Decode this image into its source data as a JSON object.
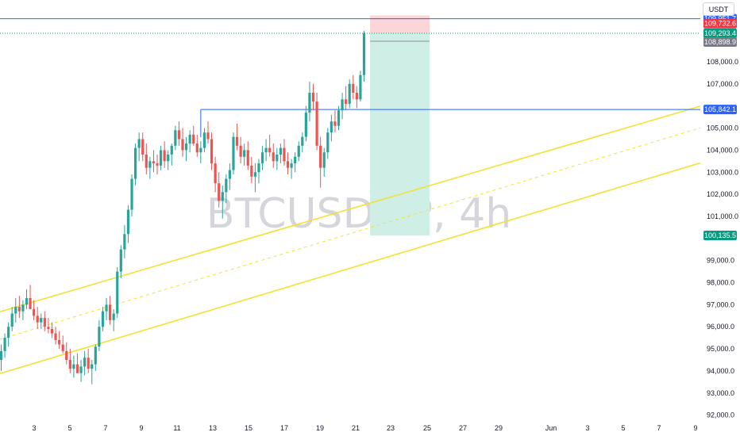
{
  "symbol_watermark": "BTCUSDT.P, 4h",
  "currency_label": "USDT",
  "colors": {
    "up": "#26a69a",
    "down": "#ef5350",
    "channel": "#f2e234",
    "level_blue": "#2962ff",
    "level_green": "#089981",
    "level_red": "#f23645",
    "level_grey": "#787b86",
    "target_zone": "#cfeee6",
    "stop_zone": "#fcd5d8"
  },
  "chart_data": {
    "type": "candlestick",
    "symbol": "BTCUSDT.P",
    "timeframe": "4h",
    "x_ticks": [
      "3",
      "5",
      "7",
      "9",
      "11",
      "13",
      "15",
      "17",
      "19",
      "21",
      "23",
      "25",
      "27",
      "29",
      "Jun",
      "3",
      "5",
      "7",
      "9"
    ],
    "y_ticks": [
      "109,000.0",
      "108,000.0",
      "107,000.0",
      "106,000.0",
      "105,000.0",
      "104,000.0",
      "103,000.0",
      "102,000.0",
      "101,000.0",
      "100,000.0",
      "99,000.0",
      "98,000.0",
      "97,000.0",
      "96,000.0",
      "95,000.0",
      "94,000.0",
      "93,000.0",
      "92,000.0"
    ],
    "ylim": [
      91700,
      110800
    ],
    "price_labels": [
      {
        "text": "109,951.7",
        "price": 109951.7,
        "color": "#2962ff"
      },
      {
        "text": "109,732.6",
        "price": 109732.6,
        "color": "#f23645"
      },
      {
        "text": "109,293.4",
        "price": 109293.4,
        "color": "#089981"
      },
      {
        "text": "108,898.9",
        "price": 108898.9,
        "color": "#787b86"
      },
      {
        "text": "105,842.1",
        "price": 105842.1,
        "color": "#2962ff"
      },
      {
        "text": "100,135.5",
        "price": 100135.5,
        "color": "#089981"
      }
    ],
    "horizontal_levels": [
      {
        "price": 109951.7,
        "style": "solid",
        "color": "#2962ff",
        "span": "full"
      },
      {
        "price": 109293.4,
        "style": "dotted",
        "color": "#089981",
        "span": "full"
      },
      {
        "price": 105842.1,
        "style": "solid",
        "color": "#2962ff",
        "span": "from_candle_70"
      }
    ],
    "position": {
      "type": "short",
      "entry": 109293.4,
      "stop": 110100,
      "target": 100135.5,
      "start_x_date": "May 22",
      "end_x_date": "May 25"
    },
    "channel": {
      "upper": [
        {
          "x": 0,
          "price": 96700
        },
        {
          "x": 255,
          "price": 109000
        }
      ],
      "middle": [
        {
          "x": 0,
          "price": 95450
        },
        {
          "x": 255,
          "price": 108100
        }
      ],
      "lower": [
        {
          "x": 0,
          "price": 93900
        },
        {
          "x": 255,
          "price": 106500
        }
      ]
    },
    "candles": [
      [
        94500,
        95200,
        94000,
        94900
      ],
      [
        94900,
        95700,
        94600,
        95500
      ],
      [
        95500,
        96200,
        95100,
        96000
      ],
      [
        96000,
        96900,
        95800,
        96600
      ],
      [
        96600,
        97300,
        96200,
        96900
      ],
      [
        96900,
        97400,
        96400,
        96700
      ],
      [
        96700,
        97200,
        96300,
        97000
      ],
      [
        97000,
        97700,
        96800,
        97300
      ],
      [
        97300,
        97900,
        96900,
        96800
      ],
      [
        96800,
        97200,
        96300,
        96500
      ],
      [
        96500,
        96900,
        95900,
        96200
      ],
      [
        96200,
        96600,
        95900,
        96400
      ],
      [
        96400,
        96700,
        95800,
        96000
      ],
      [
        96000,
        96400,
        95700,
        95900
      ],
      [
        95900,
        96200,
        95500,
        95700
      ],
      [
        95700,
        96000,
        95200,
        95400
      ],
      [
        95400,
        95800,
        95000,
        95200
      ],
      [
        95200,
        95600,
        94800,
        94900
      ],
      [
        94900,
        95300,
        94300,
        94500
      ],
      [
        94500,
        95000,
        93900,
        94100
      ],
      [
        94100,
        94700,
        93700,
        94300
      ],
      [
        94300,
        94800,
        93900,
        93900
      ],
      [
        93900,
        94500,
        93500,
        94200
      ],
      [
        94200,
        94900,
        93800,
        94600
      ],
      [
        94600,
        95000,
        93900,
        94100
      ],
      [
        94100,
        94500,
        93400,
        94300
      ],
      [
        94300,
        95200,
        94000,
        95100
      ],
      [
        95100,
        96300,
        94900,
        96000
      ],
      [
        96000,
        96900,
        95800,
        96700
      ],
      [
        96700,
        97300,
        96300,
        97000
      ],
      [
        97000,
        97400,
        96100,
        96300
      ],
      [
        96300,
        96800,
        95800,
        96600
      ],
      [
        96600,
        98700,
        96400,
        98500
      ],
      [
        98500,
        99700,
        98200,
        99500
      ],
      [
        99500,
        100600,
        99100,
        100200
      ],
      [
        100200,
        101500,
        99800,
        101300
      ],
      [
        101300,
        102900,
        101000,
        102700
      ],
      [
        102700,
        104300,
        102400,
        104100
      ],
      [
        104100,
        104800,
        103500,
        104500
      ],
      [
        104500,
        104800,
        103500,
        103800
      ],
      [
        103800,
        104300,
        102900,
        103200
      ],
      [
        103200,
        103700,
        102700,
        103500
      ],
      [
        103500,
        104000,
        103000,
        103400
      ],
      [
        103400,
        103800,
        102900,
        103300
      ],
      [
        103300,
        104200,
        103100,
        104000
      ],
      [
        104000,
        104400,
        103200,
        103500
      ],
      [
        103500,
        104000,
        103100,
        103800
      ],
      [
        103800,
        104300,
        103300,
        104200
      ],
      [
        104200,
        105100,
        104000,
        104900
      ],
      [
        104900,
        105300,
        104200,
        104500
      ],
      [
        104500,
        105000,
        103700,
        104000
      ],
      [
        104000,
        104600,
        103500,
        104300
      ],
      [
        104300,
        104900,
        103900,
        104700
      ],
      [
        104700,
        105100,
        104200,
        104300
      ],
      [
        104300,
        104700,
        103700,
        103900
      ],
      [
        103900,
        104400,
        103400,
        104100
      ],
      [
        104100,
        105000,
        103900,
        104800
      ],
      [
        104800,
        105300,
        104300,
        104500
      ],
      [
        104500,
        104800,
        103100,
        103400
      ],
      [
        103400,
        103700,
        102100,
        102500
      ],
      [
        102500,
        103000,
        101400,
        101700
      ],
      [
        101700,
        102400,
        100900,
        102100
      ],
      [
        102100,
        102900,
        101600,
        102700
      ],
      [
        102700,
        103400,
        102200,
        103100
      ],
      [
        103100,
        104800,
        102900,
        104600
      ],
      [
        104600,
        105200,
        104000,
        104200
      ],
      [
        104200,
        104600,
        103400,
        103700
      ],
      [
        103700,
        104300,
        103300,
        104000
      ],
      [
        104000,
        104400,
        103100,
        103300
      ],
      [
        103300,
        103700,
        102500,
        102800
      ],
      [
        102800,
        103400,
        102100,
        103000
      ],
      [
        103000,
        103600,
        102500,
        103400
      ],
      [
        103400,
        104200,
        103100,
        103900
      ],
      [
        103900,
        104500,
        103500,
        104100
      ],
      [
        104100,
        104700,
        103700,
        103900
      ],
      [
        103900,
        104300,
        103200,
        103500
      ],
      [
        103500,
        104100,
        103100,
        103800
      ],
      [
        103800,
        104300,
        103400,
        104100
      ],
      [
        104100,
        104500,
        103300,
        103500
      ],
      [
        103500,
        103900,
        102900,
        103200
      ],
      [
        103200,
        103600,
        102700,
        103400
      ],
      [
        103400,
        103900,
        103000,
        103700
      ],
      [
        103700,
        104400,
        103500,
        104200
      ],
      [
        104200,
        104800,
        103900,
        104600
      ],
      [
        104600,
        106000,
        104400,
        105700
      ],
      [
        105700,
        107100,
        105300,
        106600
      ],
      [
        106600,
        107000,
        105800,
        106200
      ],
      [
        106200,
        106600,
        104000,
        104200
      ],
      [
        104200,
        104600,
        102300,
        103200
      ],
      [
        103200,
        104100,
        102800,
        103900
      ],
      [
        103900,
        105000,
        103600,
        104800
      ],
      [
        104800,
        105600,
        104400,
        105300
      ],
      [
        105300,
        105800,
        104800,
        105100
      ],
      [
        105100,
        106000,
        104900,
        105800
      ],
      [
        105800,
        106600,
        105400,
        106300
      ],
      [
        106300,
        106900,
        105800,
        106100
      ],
      [
        106100,
        107200,
        105900,
        107000
      ],
      [
        107000,
        107400,
        106300,
        106600
      ],
      [
        106600,
        106900,
        105900,
        106300
      ],
      [
        106300,
        107600,
        106200,
        107400
      ],
      [
        107400,
        109400,
        107100,
        109300
      ]
    ]
  }
}
